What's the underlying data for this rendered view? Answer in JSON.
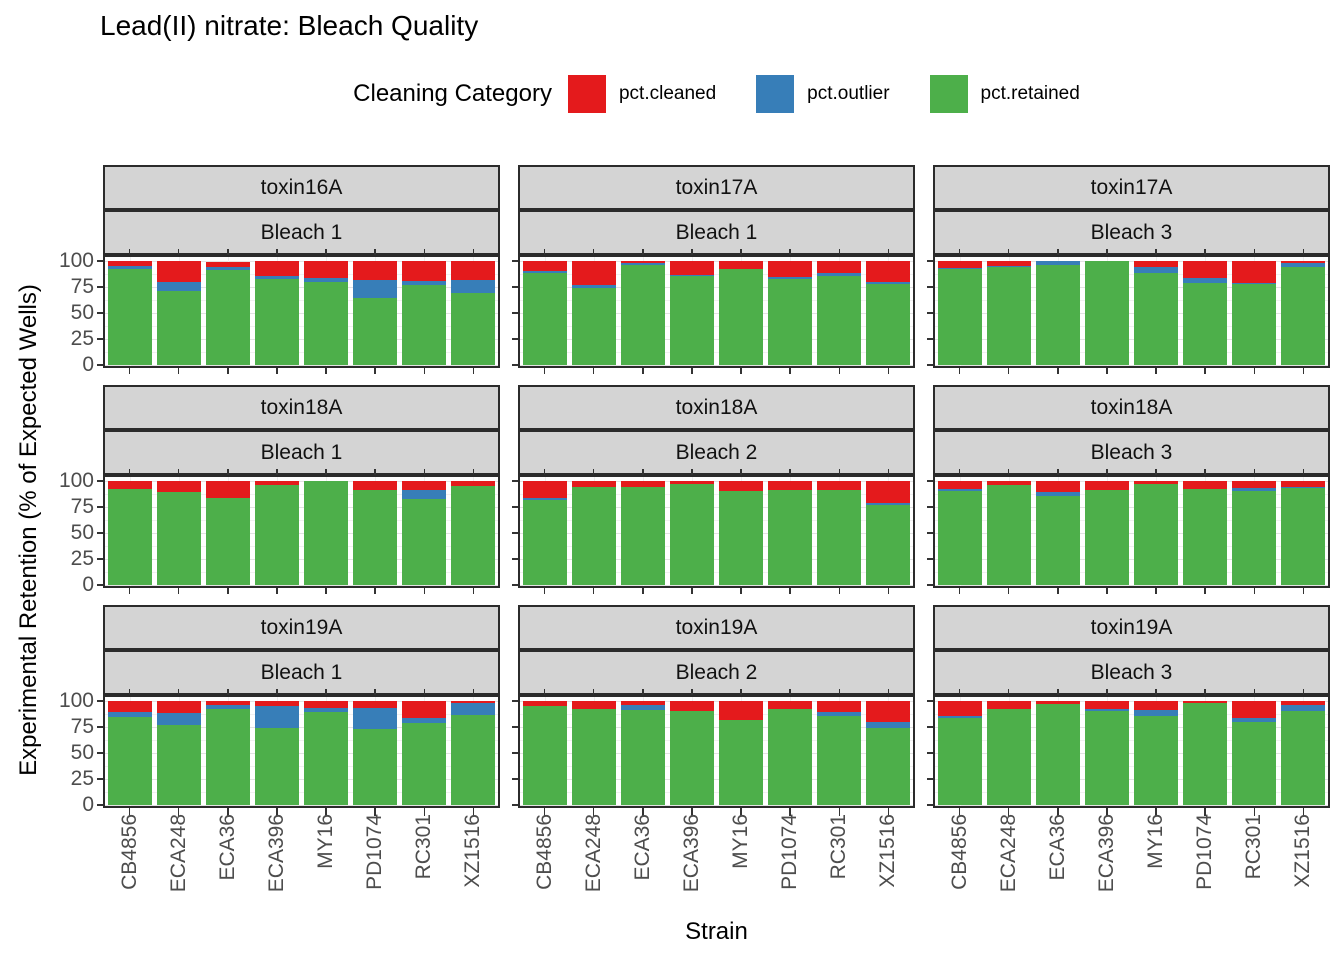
{
  "title": "Lead(II) nitrate: Bleach Quality",
  "legend": {
    "title": "Cleaning Category",
    "items": [
      {
        "label": "pct.cleaned",
        "color": "#E41A1C"
      },
      {
        "label": "pct.outlier",
        "color": "#377EB8"
      },
      {
        "label": "pct.retained",
        "color": "#4DAF4A"
      }
    ]
  },
  "axes": {
    "y_title": "Experimental Retention (% of Expected Wells)",
    "x_title": "Strain",
    "y_ticks": [
      100,
      75,
      50,
      25,
      0
    ],
    "ylim": [
      0,
      100
    ]
  },
  "chart_data": {
    "type": "bar",
    "stacked": true,
    "title": "Lead(II) nitrate: Bleach Quality",
    "xlabel": "Strain",
    "ylabel": "Experimental Retention (% of Expected Wells)",
    "ylim": [
      0,
      100
    ],
    "grid": true,
    "legend_position": "top",
    "categories": [
      "CB4856",
      "ECA248",
      "ECA36",
      "ECA396",
      "MY16",
      "PD1074",
      "RC301",
      "XZ1516"
    ],
    "stack_order": [
      "pct.retained",
      "pct.outlier",
      "pct.cleaned"
    ],
    "colors": {
      "pct.cleaned": "#E41A1C",
      "pct.outlier": "#377EB8",
      "pct.retained": "#4DAF4A"
    },
    "panels": [
      {
        "row": 0,
        "col": 0,
        "facet_top": "toxin16A",
        "facet_bottom": "Bleach 1",
        "values": {
          "pct.retained": [
            92,
            71,
            91,
            83,
            80,
            64,
            77,
            69
          ],
          "pct.outlier": [
            3,
            9,
            3,
            3,
            4,
            18,
            4,
            13
          ],
          "pct.cleaned": [
            5,
            20,
            5,
            14,
            16,
            18,
            19,
            18
          ]
        }
      },
      {
        "row": 0,
        "col": 1,
        "facet_top": "toxin17A",
        "facet_bottom": "Bleach 1",
        "values": {
          "pct.retained": [
            88,
            74,
            96,
            86,
            92,
            83,
            86,
            78
          ],
          "pct.outlier": [
            2,
            3,
            2,
            1,
            0,
            2,
            2,
            2
          ],
          "pct.cleaned": [
            10,
            23,
            2,
            13,
            8,
            15,
            12,
            20
          ]
        }
      },
      {
        "row": 0,
        "col": 2,
        "facet_top": "toxin17A",
        "facet_bottom": "Bleach 3",
        "values": {
          "pct.retained": [
            92,
            94,
            96,
            100,
            88,
            79,
            78,
            94
          ],
          "pct.outlier": [
            1,
            1,
            4,
            0,
            6,
            5,
            1,
            4
          ],
          "pct.cleaned": [
            7,
            5,
            0,
            0,
            6,
            16,
            21,
            2
          ]
        }
      },
      {
        "row": 1,
        "col": 0,
        "facet_top": "toxin18A",
        "facet_bottom": "Bleach 1",
        "values": {
          "pct.retained": [
            92,
            89,
            84,
            96,
            100,
            91,
            83,
            95
          ],
          "pct.outlier": [
            0,
            0,
            0,
            0,
            0,
            0,
            8,
            0
          ],
          "pct.cleaned": [
            8,
            11,
            16,
            4,
            0,
            9,
            9,
            5
          ]
        }
      },
      {
        "row": 1,
        "col": 1,
        "facet_top": "toxin18A",
        "facet_bottom": "Bleach 2",
        "values": {
          "pct.retained": [
            82,
            94,
            94,
            97,
            90,
            91,
            91,
            77
          ],
          "pct.outlier": [
            2,
            0,
            0,
            0,
            0,
            0,
            0,
            2
          ],
          "pct.cleaned": [
            16,
            6,
            6,
            3,
            10,
            9,
            9,
            21
          ]
        }
      },
      {
        "row": 1,
        "col": 2,
        "facet_top": "toxin18A",
        "facet_bottom": "Bleach 3",
        "values": {
          "pct.retained": [
            90,
            96,
            86,
            91,
            97,
            92,
            90,
            93
          ],
          "pct.outlier": [
            2,
            0,
            3,
            0,
            0,
            0,
            3,
            1
          ],
          "pct.cleaned": [
            8,
            4,
            11,
            9,
            3,
            8,
            7,
            6
          ]
        }
      },
      {
        "row": 2,
        "col": 0,
        "facet_top": "toxin19A",
        "facet_bottom": "Bleach 1",
        "values": {
          "pct.retained": [
            85,
            77,
            92,
            74,
            89,
            73,
            79,
            87
          ],
          "pct.outlier": [
            4,
            11,
            4,
            21,
            4,
            20,
            5,
            11
          ],
          "pct.cleaned": [
            11,
            12,
            4,
            5,
            7,
            7,
            16,
            2
          ]
        }
      },
      {
        "row": 2,
        "col": 1,
        "facet_top": "toxin19A",
        "facet_bottom": "Bleach 2",
        "values": {
          "pct.retained": [
            95,
            92,
            91,
            90,
            82,
            92,
            86,
            74
          ],
          "pct.outlier": [
            0,
            0,
            5,
            0,
            0,
            0,
            3,
            6
          ],
          "pct.cleaned": [
            5,
            8,
            4,
            10,
            18,
            8,
            11,
            20
          ]
        }
      },
      {
        "row": 2,
        "col": 2,
        "facet_top": "toxin19A",
        "facet_bottom": "Bleach 3",
        "values": {
          "pct.retained": [
            84,
            92,
            97,
            90,
            86,
            98,
            80,
            90
          ],
          "pct.outlier": [
            2,
            0,
            0,
            2,
            5,
            0,
            4,
            6
          ],
          "pct.cleaned": [
            14,
            8,
            3,
            8,
            9,
            2,
            16,
            4
          ]
        }
      }
    ]
  }
}
